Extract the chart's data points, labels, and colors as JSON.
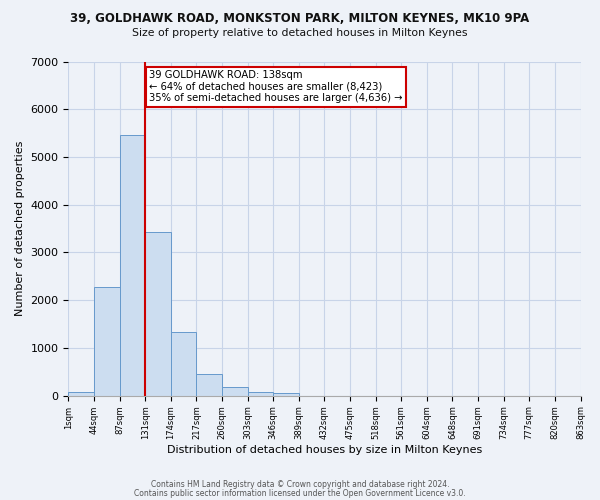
{
  "title_line1": "39, GOLDHAWK ROAD, MONKSTON PARK, MILTON KEYNES, MK10 9PA",
  "title_line2": "Size of property relative to detached houses in Milton Keynes",
  "xlabel": "Distribution of detached houses by size in Milton Keynes",
  "ylabel": "Number of detached properties",
  "bar_values": [
    70,
    2270,
    5470,
    3420,
    1340,
    450,
    175,
    70,
    50,
    0,
    0,
    0,
    0,
    0,
    0,
    0,
    0,
    0,
    0,
    0
  ],
  "tick_labels": [
    "1sqm",
    "44sqm",
    "87sqm",
    "131sqm",
    "174sqm",
    "217sqm",
    "260sqm",
    "303sqm",
    "346sqm",
    "389sqm",
    "432sqm",
    "475sqm",
    "518sqm",
    "561sqm",
    "604sqm",
    "648sqm",
    "691sqm",
    "734sqm",
    "777sqm",
    "820sqm",
    "863sqm"
  ],
  "bar_color": "#ccddf0",
  "bar_edge_color": "#6699cc",
  "ylim": [
    0,
    7000
  ],
  "yticks": [
    0,
    1000,
    2000,
    3000,
    4000,
    5000,
    6000,
    7000
  ],
  "vline_bin": 3,
  "vline_color": "#cc0000",
  "annotation_line1": "39 GOLDHAWK ROAD: 138sqm",
  "annotation_line2": "← 64% of detached houses are smaller (8,423)",
  "annotation_line3": "35% of semi-detached houses are larger (4,636) →",
  "annotation_box_facecolor": "#ffffff",
  "annotation_box_edgecolor": "#cc0000",
  "grid_color": "#c8d4e8",
  "footer_line1": "Contains HM Land Registry data © Crown copyright and database right 2024.",
  "footer_line2": "Contains public sector information licensed under the Open Government Licence v3.0.",
  "bg_color": "#eef2f8"
}
